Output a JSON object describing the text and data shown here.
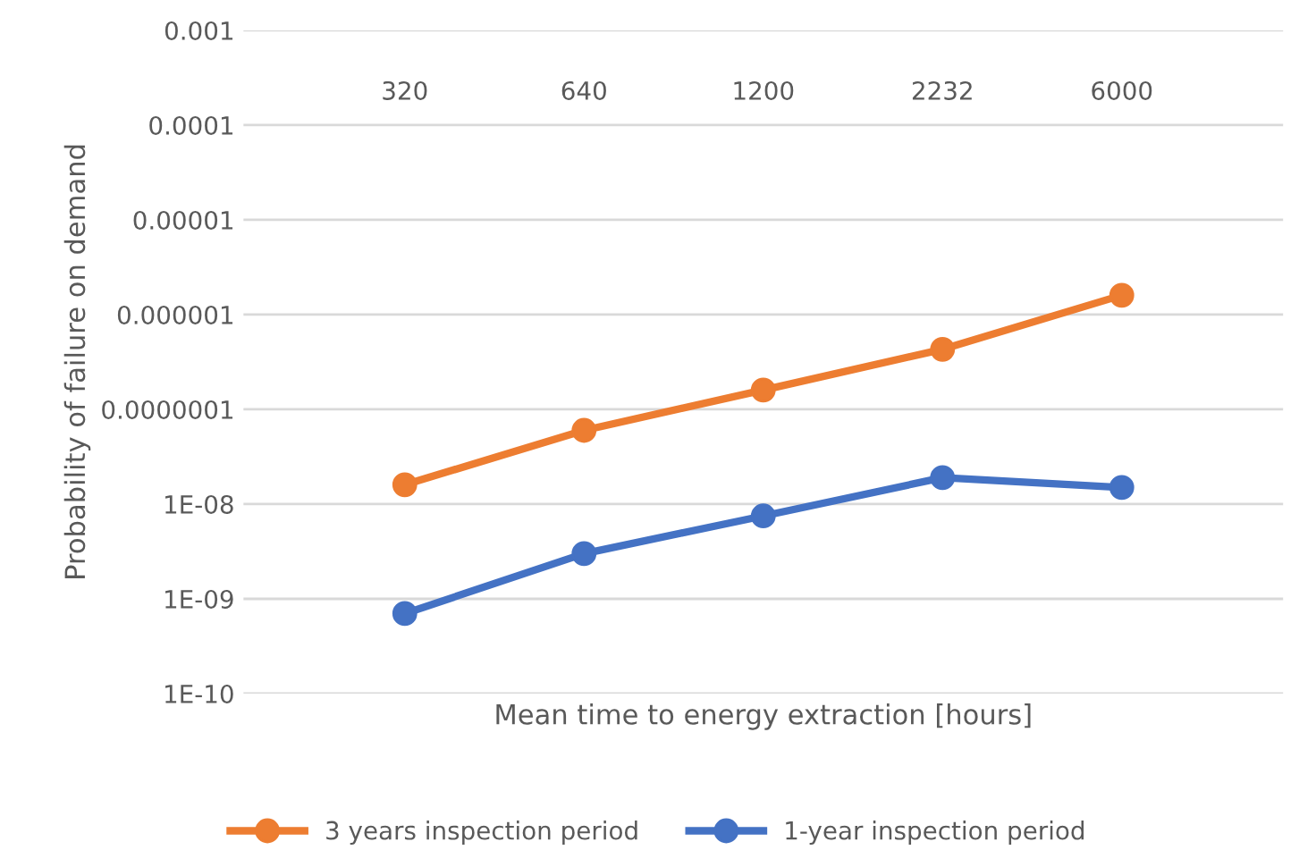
{
  "chart_data": {
    "type": "line",
    "xlabel": "Mean time to energy extraction [hours]",
    "ylabel": "Probability of failure on demand",
    "categories": [
      "320",
      "640",
      "1200",
      "2232",
      "6000"
    ],
    "series": [
      {
        "name": "3 years inspection period",
        "color": "#ed7d31",
        "values": [
          1.6e-08,
          6e-08,
          1.6e-07,
          4.3e-07,
          1.6e-06
        ]
      },
      {
        "name": "1-year inspection period",
        "color": "#4472c4",
        "values": [
          7e-10,
          3e-09,
          7.5e-09,
          1.9e-08,
          1.5e-08
        ]
      }
    ],
    "log": "y",
    "ylim": [
      1e-10,
      0.001
    ],
    "yticks": [
      {
        "value": 1e-10,
        "label": "1E-10"
      },
      {
        "value": 1e-09,
        "label": "1E-09"
      },
      {
        "value": 1e-08,
        "label": "1E-08"
      },
      {
        "value": 1e-07,
        "label": "0.0000001"
      },
      {
        "value": 1e-06,
        "label": "0.000001"
      },
      {
        "value": 1e-05,
        "label": "0.00001"
      },
      {
        "value": 0.0001,
        "label": "0.0001"
      },
      0.001
    ],
    "grid": "y",
    "legend": "bottom",
    "marker": "circle",
    "line_style": "solid"
  }
}
